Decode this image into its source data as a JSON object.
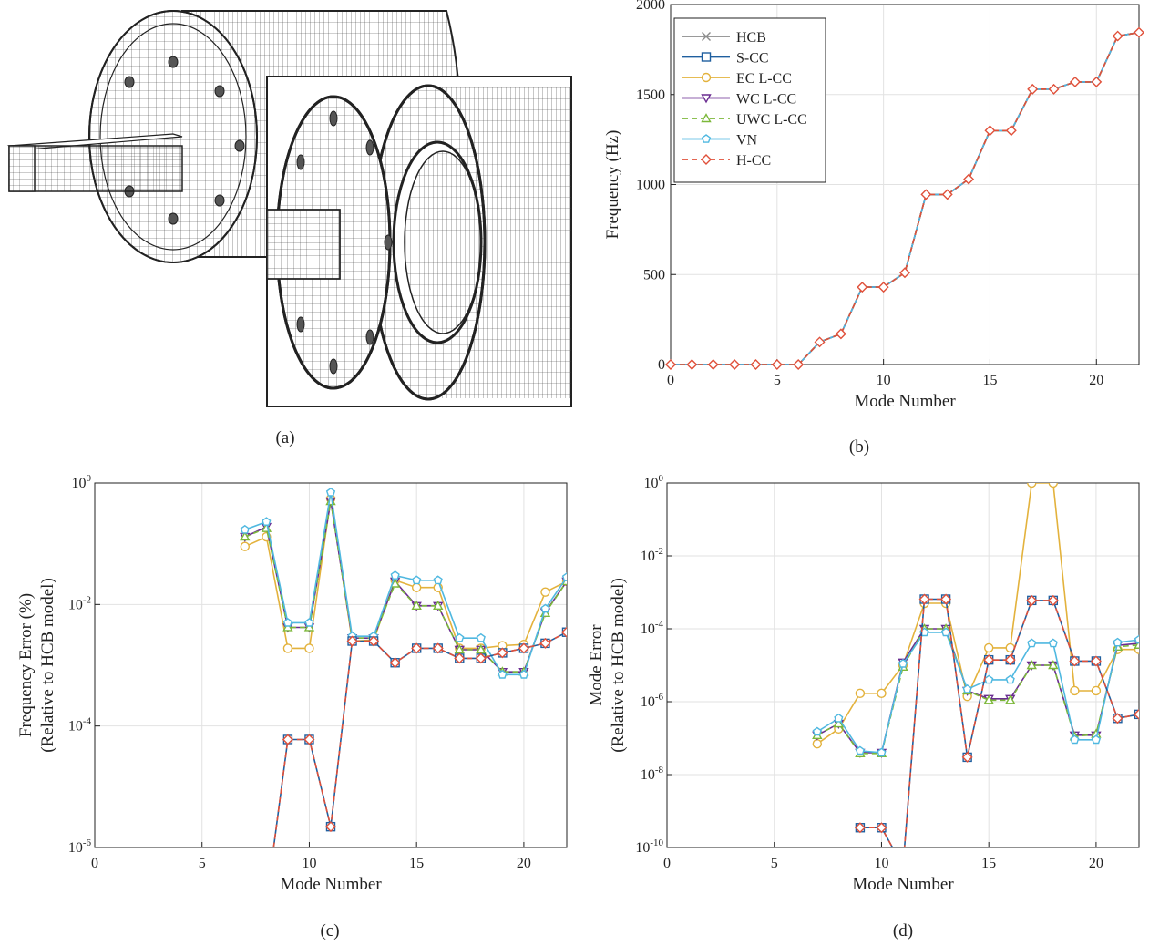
{
  "panels": {
    "a": {
      "label": "(a)"
    },
    "b": {
      "label": "(b)"
    },
    "c": {
      "label": "(c)"
    },
    "d": {
      "label": "(d)"
    }
  },
  "legend": {
    "entries": [
      {
        "name": "HCB",
        "color": "#8c8c8c",
        "marker": "x",
        "dash": ""
      },
      {
        "name": "S-CC",
        "color": "#1f5f9f",
        "marker": "square",
        "dash": ""
      },
      {
        "name": "EC L-CC",
        "color": "#e3b23c",
        "marker": "circle",
        "dash": ""
      },
      {
        "name": "WC L-CC",
        "color": "#6a2c91",
        "marker": "triangle-down",
        "dash": ""
      },
      {
        "name": "UWC L-CC",
        "color": "#7cb83a",
        "marker": "triangle-up",
        "dash": "6,4"
      },
      {
        "name": "VN",
        "color": "#4fb8e0",
        "marker": "pentagon",
        "dash": ""
      },
      {
        "name": "H-CC",
        "color": "#e0503a",
        "marker": "diamond",
        "dash": "6,4"
      }
    ]
  },
  "colors": {
    "HCB": "#8c8c8c",
    "S-CC": "#1f5f9f",
    "EC L-CC": "#e3b23c",
    "WC L-CC": "#6a2c91",
    "UWC L-CC": "#7cb83a",
    "VN": "#4fb8e0",
    "H-CC": "#e0503a"
  },
  "chart_data": [
    {
      "id": "b",
      "type": "line",
      "xlabel": "Mode Number",
      "ylabel": "Frequency (Hz)",
      "xlim": [
        0,
        22
      ],
      "ylim": [
        0,
        2000
      ],
      "xticks": [
        "0",
        "5",
        "10",
        "15",
        "20"
      ],
      "yticks": [
        "0",
        "500",
        "1000",
        "1500",
        "2000"
      ],
      "grid": true,
      "legend_position": "top-left",
      "x": [
        0,
        1,
        2,
        3,
        4,
        5,
        6,
        7,
        8,
        9,
        10,
        11,
        12,
        13,
        14,
        15,
        16,
        17,
        18,
        19,
        20,
        21,
        22
      ],
      "values": [
        0,
        0,
        0,
        0,
        0,
        0,
        0,
        125,
        170,
        430,
        430,
        510,
        945,
        945,
        1030,
        1300,
        1300,
        1530,
        1530,
        1570,
        1570,
        1825,
        1845
      ]
    },
    {
      "id": "c",
      "type": "line",
      "scale": "log",
      "xlabel": "Mode Number",
      "ylabel": "Frequency Error (%)",
      "ylabel2": "(Relative to HCB model)",
      "xlim": [
        0,
        22
      ],
      "ylim_exp": [
        -6,
        0
      ],
      "xticks": [
        "0",
        "5",
        "10",
        "15",
        "20"
      ],
      "ytick_exps": [
        "-6",
        "-4",
        "-2",
        "0"
      ],
      "grid": true,
      "x": [
        7,
        8,
        9,
        10,
        11,
        12,
        13,
        14,
        15,
        16,
        17,
        18,
        19,
        20,
        21,
        22
      ],
      "series": [
        {
          "name": "EC L-CC",
          "values": [
            0.09,
            0.13,
            0.0019,
            0.0019,
            0.55,
            0.0025,
            0.0026,
            0.025,
            0.019,
            0.019,
            0.0019,
            0.0019,
            0.0021,
            0.0022,
            0.016,
            0.024
          ]
        },
        {
          "name": "WC L-CC",
          "values": [
            0.13,
            0.19,
            0.0042,
            0.0042,
            0.5,
            0.0028,
            0.0028,
            0.024,
            0.0095,
            0.0095,
            0.0018,
            0.0018,
            0.00078,
            0.00078,
            0.0075,
            0.024
          ]
        },
        {
          "name": "UWC L-CC",
          "values": [
            0.13,
            0.18,
            0.0042,
            0.0042,
            0.5,
            0.0028,
            0.0028,
            0.022,
            0.0095,
            0.0095,
            0.0018,
            0.0018,
            0.00078,
            0.00078,
            0.0072,
            0.024
          ]
        },
        {
          "name": "VN",
          "values": [
            0.17,
            0.23,
            0.005,
            0.005,
            0.7,
            0.003,
            0.003,
            0.03,
            0.025,
            0.025,
            0.0028,
            0.0028,
            0.0007,
            0.0007,
            0.0085,
            0.028
          ]
        },
        {
          "name": "S-CC",
          "values": [
            null,
            1e-07,
            6e-05,
            6e-05,
            2.2e-06,
            0.0025,
            0.0025,
            0.0011,
            0.0019,
            0.0019,
            0.0013,
            0.0013,
            0.0016,
            0.0019,
            0.0023,
            0.0035
          ]
        },
        {
          "name": "H-CC",
          "values": [
            null,
            1e-07,
            6e-05,
            6e-05,
            2.2e-06,
            0.0025,
            0.0025,
            0.0011,
            0.0019,
            0.0019,
            0.0013,
            0.0013,
            0.0016,
            0.0019,
            0.0023,
            0.0035
          ]
        }
      ]
    },
    {
      "id": "d",
      "type": "line",
      "scale": "log",
      "xlabel": "Mode Number",
      "ylabel": "Mode Error",
      "ylabel2": "(Relative to HCB model)",
      "xlim": [
        0,
        22
      ],
      "ylim_exp": [
        -10,
        0
      ],
      "xticks": [
        "0",
        "5",
        "10",
        "15",
        "20"
      ],
      "ytick_exps": [
        "-10",
        "-8",
        "-6",
        "-4",
        "-2",
        "0"
      ],
      "grid": true,
      "x": [
        7,
        8,
        9,
        10,
        11,
        12,
        13,
        14,
        15,
        16,
        17,
        18,
        19,
        20,
        21,
        22
      ],
      "series": [
        {
          "name": "EC L-CC",
          "values": [
            7e-08,
            1.8e-07,
            1.7e-06,
            1.7e-06,
            1e-05,
            0.0005,
            0.0005,
            1.4e-06,
            3e-05,
            3e-05,
            1,
            1,
            2e-06,
            2e-06,
            2.7e-05,
            2.7e-05
          ]
        },
        {
          "name": "WC L-CC",
          "values": [
            1.2e-07,
            2.5e-07,
            4e-08,
            4e-08,
            1.2e-05,
            0.0001,
            0.0001,
            2e-06,
            1.2e-06,
            1.2e-06,
            1e-05,
            1e-05,
            1.2e-07,
            1.2e-07,
            3.5e-05,
            4e-05
          ]
        },
        {
          "name": "UWC L-CC",
          "values": [
            1.2e-07,
            2.5e-07,
            3.8e-08,
            3.8e-08,
            9e-06,
            0.0001,
            0.0001,
            2e-06,
            1.1e-06,
            1.1e-06,
            1e-05,
            1e-05,
            1.1e-07,
            1.3e-07,
            3.2e-05,
            3.6e-05
          ]
        },
        {
          "name": "VN",
          "values": [
            1.5e-07,
            3.5e-07,
            4.5e-08,
            4e-08,
            1.1e-05,
            8e-05,
            8e-05,
            2.2e-06,
            4e-06,
            4e-06,
            4e-05,
            4e-05,
            9e-08,
            9e-08,
            4.2e-05,
            5e-05
          ]
        },
        {
          "name": "S-CC",
          "values": [
            null,
            null,
            3.5e-10,
            3.5e-10,
            3e-11,
            0.00065,
            0.00065,
            3e-08,
            1.4e-05,
            1.4e-05,
            0.0006,
            0.0006,
            1.3e-05,
            1.3e-05,
            3.5e-07,
            4.5e-07
          ]
        },
        {
          "name": "H-CC",
          "values": [
            null,
            null,
            3.5e-10,
            3.5e-10,
            3e-11,
            0.00065,
            0.00065,
            3e-08,
            1.4e-05,
            1.4e-05,
            0.0006,
            0.0006,
            1.3e-05,
            1.3e-05,
            3.5e-07,
            4.5e-07
          ]
        }
      ]
    }
  ]
}
